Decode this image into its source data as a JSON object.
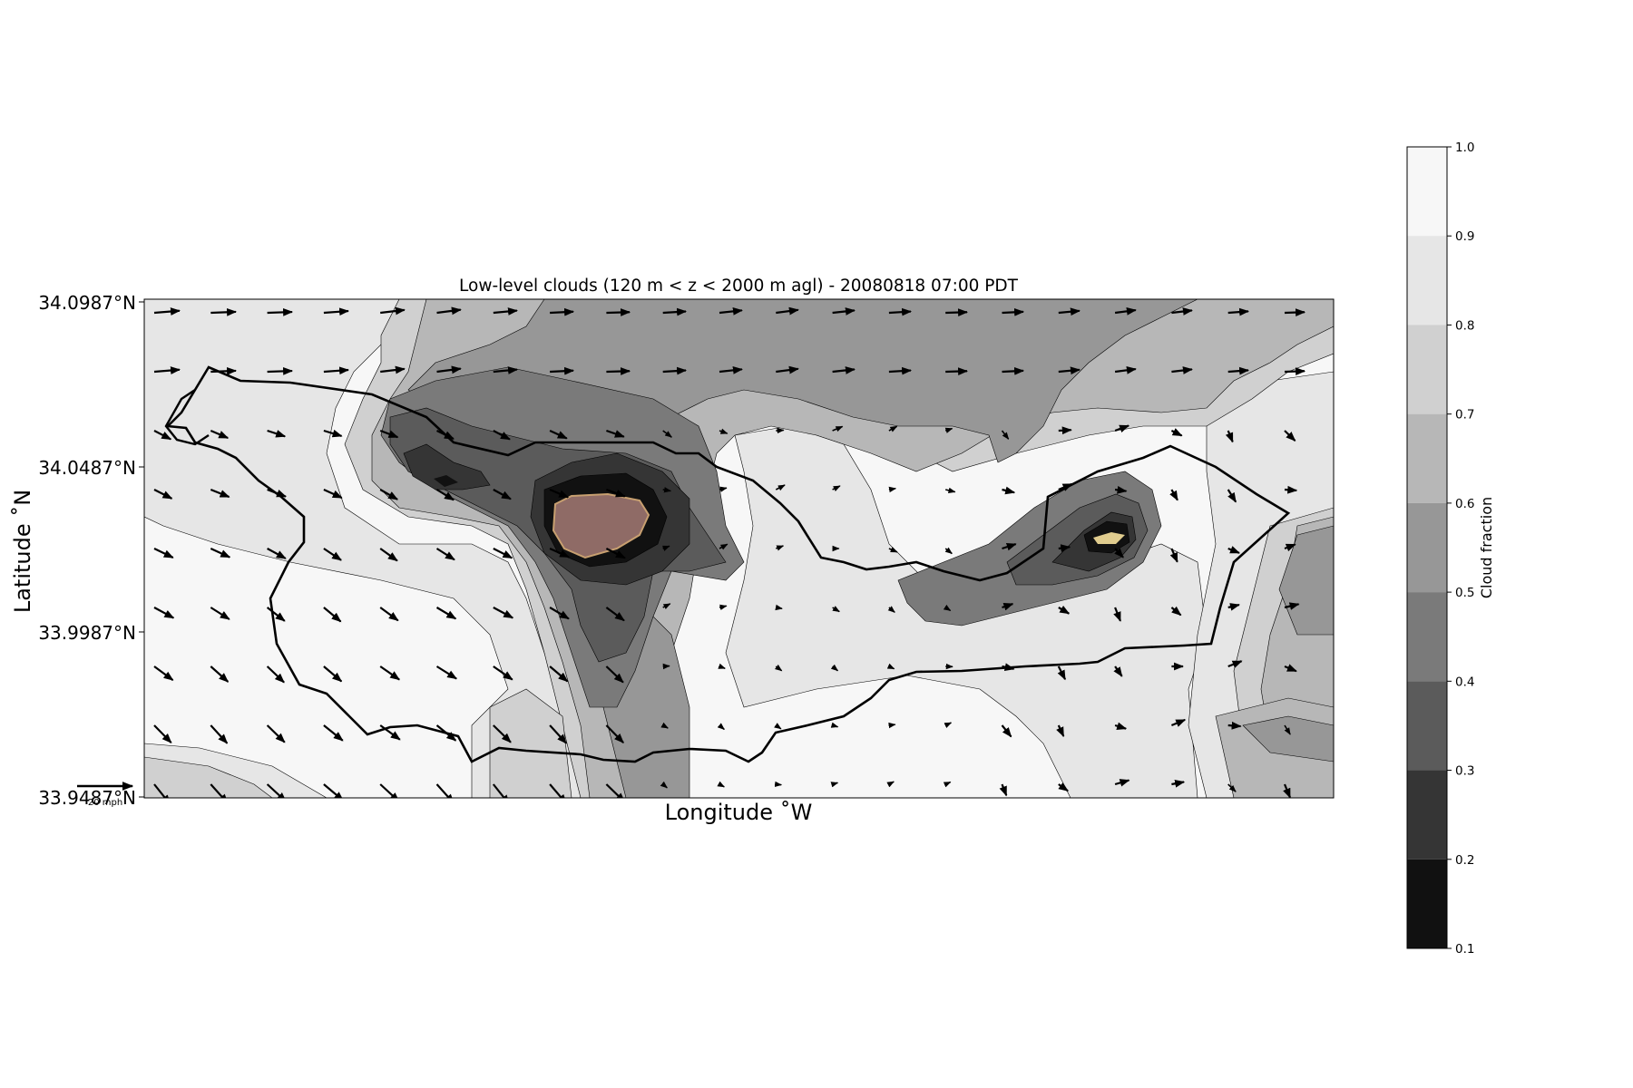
{
  "title": "Low-level clouds (120 m < z < 2000 m agl) - 20080818 07:00 PDT",
  "xlabel": "Longitude $^\\circ$W",
  "xlabel_display": "Longitude ˚W",
  "ylabel_display": "Latitude ˚N",
  "lat_ticks": [
    "34.0987°N",
    "34.0487°N",
    "33.9987°N",
    "33.9487°N"
  ],
  "quiver_key_label": "20 mph",
  "colorbar": {
    "label": "Cloud fraction",
    "ticks": [
      "1.0",
      "0.9",
      "0.8",
      "0.7",
      "0.6",
      "0.5",
      "0.4",
      "0.3",
      "0.2",
      "0.1"
    ],
    "levels": [
      {
        "from": 0.9,
        "to": 1.0,
        "color": "#f7f7f7"
      },
      {
        "from": 0.8,
        "to": 0.9,
        "color": "#e6e6e6"
      },
      {
        "from": 0.7,
        "to": 0.8,
        "color": "#d0d0d0"
      },
      {
        "from": 0.6,
        "to": 0.7,
        "color": "#b7b7b7"
      },
      {
        "from": 0.5,
        "to": 0.6,
        "color": "#979797"
      },
      {
        "from": 0.4,
        "to": 0.5,
        "color": "#7a7a7a"
      },
      {
        "from": 0.3,
        "to": 0.4,
        "color": "#5b5b5b"
      },
      {
        "from": 0.2,
        "to": 0.3,
        "color": "#353535"
      },
      {
        "from": 0.1,
        "to": 0.2,
        "color": "#111111"
      }
    ]
  },
  "colors": {
    "coast": "#000000",
    "terrain_high": "#8f6b66",
    "terrain_peak": "#e0cc8e"
  }
}
